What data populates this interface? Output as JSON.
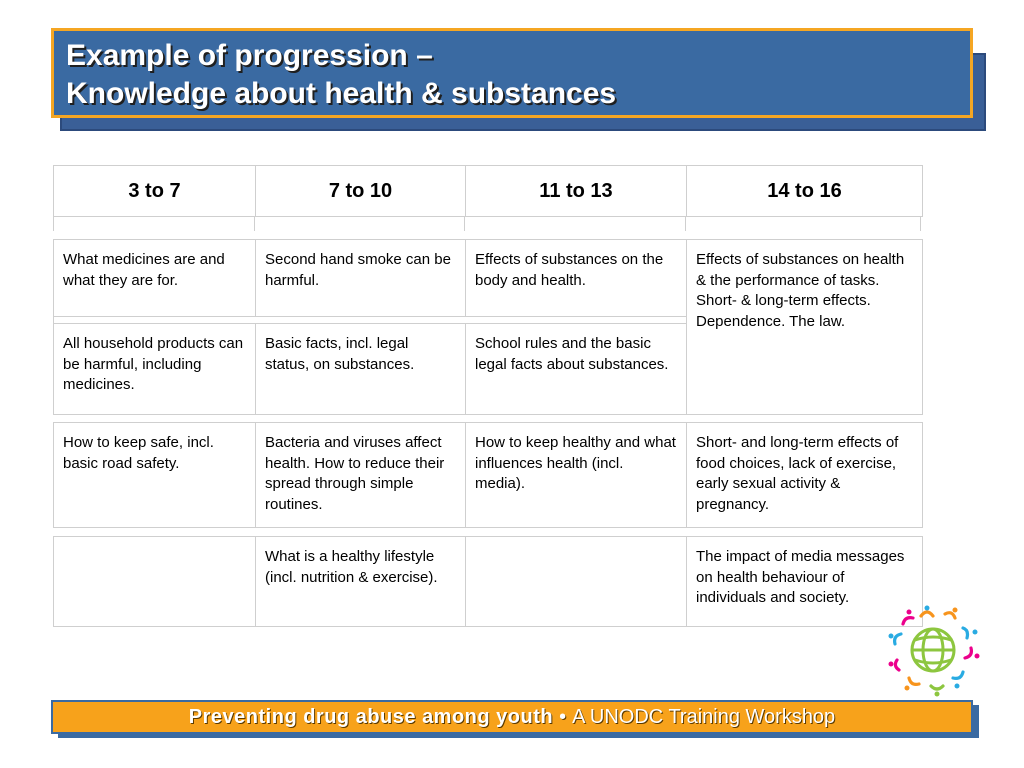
{
  "title": {
    "line1": "Example of progression –",
    "line2": "Knowledge about health & substances"
  },
  "table": {
    "headers": [
      "3 to 7",
      "7 to 10",
      "11 to 13",
      "14 to 16"
    ],
    "rows": [
      [
        "What medicines are and what they are for.",
        "Second hand smoke can be harmful.",
        "Effects of substances on the body and health.",
        "Effects of substances on health & the performance of tasks. Short- & long-term effects. Dependence. The law."
      ],
      [
        "All household products can be harmful, including medicines.",
        "Basic facts, incl. legal status, on substances.",
        "School rules and the basic legal facts about substances.",
        ""
      ],
      [
        "How to keep safe, incl. basic road safety.",
        "Bacteria and viruses affect health. How to reduce their spread through simple routines.",
        "How to keep healthy and what influences health (incl. media).",
        "Short- and long-term effects of food choices, lack of exercise, early sexual activity & pregnancy."
      ],
      [
        "",
        "What is a healthy lifestyle (incl. nutrition & exercise).",
        "",
        "The impact of media messages on health behaviour of individuals and society."
      ]
    ]
  },
  "footer": {
    "bold_text": "Preventing drug abuse among youth",
    "separator": "•",
    "regular_text": "A UNODC Training Workshop"
  },
  "logo": {
    "icon": "unodc-circle-of-people-logo"
  },
  "colors": {
    "title_bg": "#3a6aa2",
    "title_border": "#f5a623",
    "footer_bg": "#f7a21b",
    "footer_border": "#3a6aa2"
  }
}
